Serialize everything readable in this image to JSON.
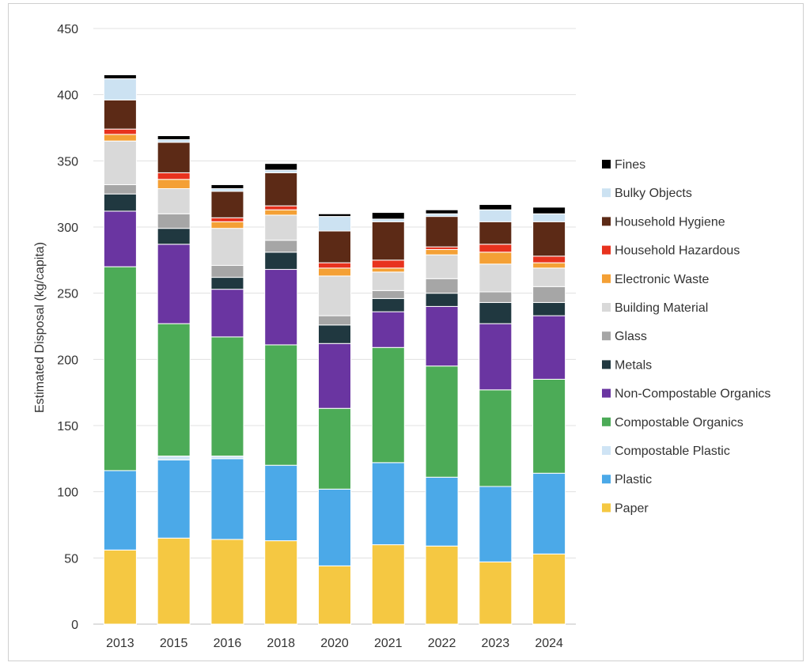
{
  "chart_data": {
    "type": "bar",
    "stacked": true,
    "title": "",
    "xlabel": "",
    "ylabel": "Estimated Disposal (kg/capita)",
    "ylim": [
      0,
      450
    ],
    "yticks": [
      0,
      50,
      100,
      150,
      200,
      250,
      300,
      350,
      400,
      450
    ],
    "grid": true,
    "legend_position": "right",
    "categories": [
      "2013",
      "2015",
      "2016",
      "2018",
      "2020",
      "2021",
      "2022",
      "2023",
      "2024"
    ],
    "series": [
      {
        "name": "Paper",
        "color": "#F5C842",
        "values": [
          56,
          65,
          64,
          63,
          44,
          60,
          59,
          47,
          53
        ]
      },
      {
        "name": "Plastic",
        "color": "#4BA9E8",
        "values": [
          60,
          59,
          61,
          57,
          58,
          62,
          52,
          57,
          61
        ]
      },
      {
        "name": "Compostable Plastic",
        "color": "#CFE4F5",
        "values": [
          0,
          3,
          2,
          0,
          0,
          0,
          0,
          0,
          0
        ]
      },
      {
        "name": "Compostable Organics",
        "color": "#4CAB57",
        "values": [
          154,
          100,
          90,
          91,
          61,
          87,
          84,
          73,
          71
        ]
      },
      {
        "name": "Non-Compostable Organics",
        "color": "#6A35A1",
        "values": [
          42,
          60,
          36,
          57,
          49,
          27,
          45,
          50,
          48
        ]
      },
      {
        "name": "Metals",
        "color": "#203840",
        "values": [
          13,
          12,
          9,
          13,
          14,
          10,
          10,
          16,
          10
        ]
      },
      {
        "name": "Glass",
        "color": "#A6A6A6",
        "values": [
          7,
          11,
          9,
          9,
          7,
          6,
          11,
          8,
          12
        ]
      },
      {
        "name": "Building Material",
        "color": "#D9D9D9",
        "values": [
          33,
          19,
          28,
          19,
          30,
          14,
          18,
          21,
          14
        ]
      },
      {
        "name": "Electronic Waste",
        "color": "#F4A035",
        "values": [
          5,
          7,
          5,
          4,
          6,
          3,
          4,
          9,
          4
        ]
      },
      {
        "name": "Household Hazardous",
        "color": "#E8321E",
        "values": [
          4,
          5,
          3,
          3,
          4,
          6,
          2,
          6,
          5
        ]
      },
      {
        "name": "Household Hygiene",
        "color": "#5C2A16",
        "values": [
          22,
          23,
          20,
          25,
          24,
          29,
          23,
          17,
          26
        ]
      },
      {
        "name": "Bulky Objects",
        "color": "#CCE2F2",
        "values": [
          16,
          2,
          2,
          2,
          11,
          2,
          2,
          9,
          6
        ]
      },
      {
        "name": "Fines",
        "color": "#000000",
        "values": [
          3,
          3,
          3,
          5,
          2,
          5,
          3,
          4,
          5
        ]
      }
    ]
  }
}
